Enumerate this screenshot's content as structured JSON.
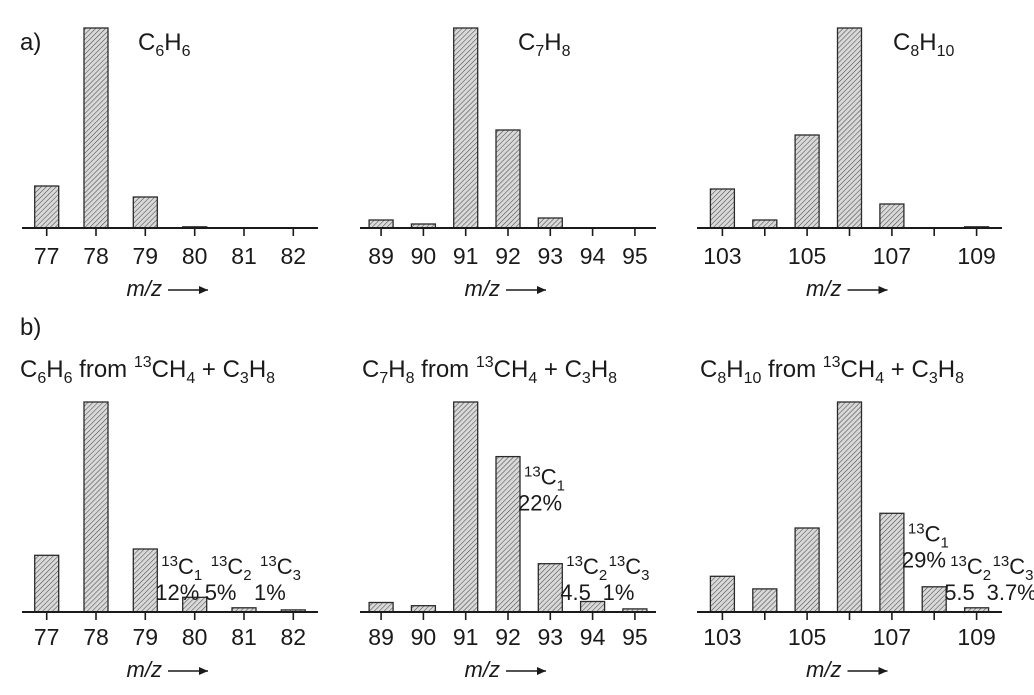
{
  "figure": {
    "panel_a_label": "a)",
    "panel_b_label": "b)"
  },
  "colors": {
    "bar_fill": "#d6d6d6",
    "bar_stroke": "#2a2a2a",
    "hatch": "#555555",
    "axis": "#1a1a1a"
  },
  "chart_data": [
    {
      "type": "bar",
      "row": "a",
      "col": 0,
      "title": {
        "base": "C",
        "sub1": "6",
        "mid": "H",
        "sub2": "6"
      },
      "x_range": [
        76.5,
        82.5
      ],
      "x": [
        77,
        78,
        79,
        80,
        81,
        82
      ],
      "values": [
        21,
        100,
        15.5,
        0.3,
        0,
        0
      ],
      "ylim": [
        0,
        100
      ],
      "tick_labels": [
        {
          "x": 77,
          "label": "77"
        },
        {
          "x": 78,
          "label": "78"
        },
        {
          "x": 79,
          "label": "79"
        },
        {
          "x": 80,
          "label": "80"
        },
        {
          "x": 81,
          "label": "81"
        },
        {
          "x": 82,
          "label": "82"
        }
      ],
      "xlabel": "m/z",
      "annotations": []
    },
    {
      "type": "bar",
      "row": "a",
      "col": 1,
      "title": {
        "base": "C",
        "sub1": "7",
        "mid": "H",
        "sub2": "8"
      },
      "x_range": [
        88.5,
        95.5
      ],
      "x": [
        89,
        90,
        91,
        92,
        93,
        94,
        95
      ],
      "values": [
        4,
        2,
        100,
        49,
        5,
        0,
        0
      ],
      "ylim": [
        0,
        100
      ],
      "tick_labels": [
        {
          "x": 89,
          "label": "89"
        },
        {
          "x": 90,
          "label": "90"
        },
        {
          "x": 91,
          "label": "91"
        },
        {
          "x": 92,
          "label": "92"
        },
        {
          "x": 93,
          "label": "93"
        },
        {
          "x": 94,
          "label": "94"
        },
        {
          "x": 95,
          "label": "95"
        }
      ],
      "xlabel": "m/z",
      "annotations": []
    },
    {
      "type": "bar",
      "row": "a",
      "col": 2,
      "title": {
        "base": "C",
        "sub1": "8",
        "mid": "H",
        "sub2": "10"
      },
      "x_range": [
        102.4,
        109.6
      ],
      "x": [
        103,
        104,
        105,
        106,
        107,
        108,
        109
      ],
      "values": [
        19.5,
        4,
        46.5,
        100,
        12,
        0,
        0.3
      ],
      "ylim": [
        0,
        100
      ],
      "tick_labels": [
        {
          "x": 103,
          "label": "103"
        },
        {
          "x": 105,
          "label": "105"
        },
        {
          "x": 107,
          "label": "107"
        },
        {
          "x": 109,
          "label": "109"
        }
      ],
      "xlabel": "m/z",
      "annotations": []
    },
    {
      "type": "bar",
      "row": "b",
      "col": 0,
      "title": {
        "base": "C",
        "sub1": "6",
        "mid": "H",
        "sub2": "6",
        "from": "from",
        "iso": "13",
        "r1": "CH",
        "r1sub": "4",
        "plus": "+",
        "r2a": "C",
        "r2sub1": "3",
        "r2b": "H",
        "r2sub2": "8"
      },
      "x_range": [
        76.5,
        82.5
      ],
      "x": [
        77,
        78,
        79,
        80,
        81,
        82
      ],
      "values": [
        27,
        100,
        30,
        7,
        2,
        1
      ],
      "ylim": [
        0,
        100
      ],
      "tick_labels": [
        {
          "x": 77,
          "label": "77"
        },
        {
          "x": 78,
          "label": "78"
        },
        {
          "x": 79,
          "label": "79"
        },
        {
          "x": 80,
          "label": "80"
        },
        {
          "x": 81,
          "label": "81"
        },
        {
          "x": 82,
          "label": "82"
        }
      ],
      "xlabel": "m/z",
      "annotations": [
        {
          "x": 79,
          "sup": "13",
          "base": "C",
          "sub": "1",
          "value": "12%"
        },
        {
          "x": 80,
          "sup": "13",
          "base": "C",
          "sub": "2",
          "value": "5%"
        },
        {
          "x": 81,
          "sup": "13",
          "base": "C",
          "sub": "3",
          "value": "1%"
        }
      ]
    },
    {
      "type": "bar",
      "row": "b",
      "col": 1,
      "title": {
        "base": "C",
        "sub1": "7",
        "mid": "H",
        "sub2": "8",
        "from": "from",
        "iso": "13",
        "r1": "CH",
        "r1sub": "4",
        "plus": "+",
        "r2a": "C",
        "r2sub1": "3",
        "r2b": "H",
        "r2sub2": "8"
      },
      "x_range": [
        88.5,
        95.5
      ],
      "x": [
        89,
        90,
        91,
        92,
        93,
        94,
        95
      ],
      "values": [
        4.5,
        3,
        100,
        74,
        23,
        5,
        1.5
      ],
      "ylim": [
        0,
        100
      ],
      "tick_labels": [
        {
          "x": 89,
          "label": "89"
        },
        {
          "x": 90,
          "label": "90"
        },
        {
          "x": 91,
          "label": "91"
        },
        {
          "x": 92,
          "label": "92"
        },
        {
          "x": 93,
          "label": "93"
        },
        {
          "x": 94,
          "label": "94"
        },
        {
          "x": 95,
          "label": "95"
        }
      ],
      "xlabel": "m/z",
      "annotations": [
        {
          "x": 92,
          "sup": "13",
          "base": "C",
          "sub": "1",
          "value": "22%"
        },
        {
          "x": 93,
          "sup": "13",
          "base": "C",
          "sub": "2",
          "value": "4.5"
        },
        {
          "x": 94,
          "sup": "13",
          "base": "C",
          "sub": "3",
          "value": "1%"
        }
      ]
    },
    {
      "type": "bar",
      "row": "b",
      "col": 2,
      "title": {
        "base": "C",
        "sub1": "8",
        "mid": "H",
        "sub2": "10",
        "from": "from",
        "iso": "13",
        "r1": "CH",
        "r1sub": "4",
        "plus": "+",
        "r2a": "C",
        "r2sub1": "3",
        "r2b": "H",
        "r2sub2": "8"
      },
      "x_range": [
        102.4,
        109.6
      ],
      "x": [
        103,
        104,
        105,
        106,
        107,
        108,
        109
      ],
      "values": [
        17,
        11,
        40,
        100,
        47,
        12,
        2
      ],
      "ylim": [
        0,
        100
      ],
      "tick_labels": [
        {
          "x": 103,
          "label": "103"
        },
        {
          "x": 105,
          "label": "105"
        },
        {
          "x": 107,
          "label": "107"
        },
        {
          "x": 109,
          "label": "109"
        }
      ],
      "xlabel": "m/z",
      "annotations": [
        {
          "x": 107,
          "sup": "13",
          "base": "C",
          "sub": "1",
          "value": "29%"
        },
        {
          "x": 108,
          "sup": "13",
          "base": "C",
          "sub": "2",
          "value": "5.5"
        },
        {
          "x": 109,
          "sup": "13",
          "base": "C",
          "sub": "3",
          "value": "3.7%"
        }
      ]
    }
  ]
}
